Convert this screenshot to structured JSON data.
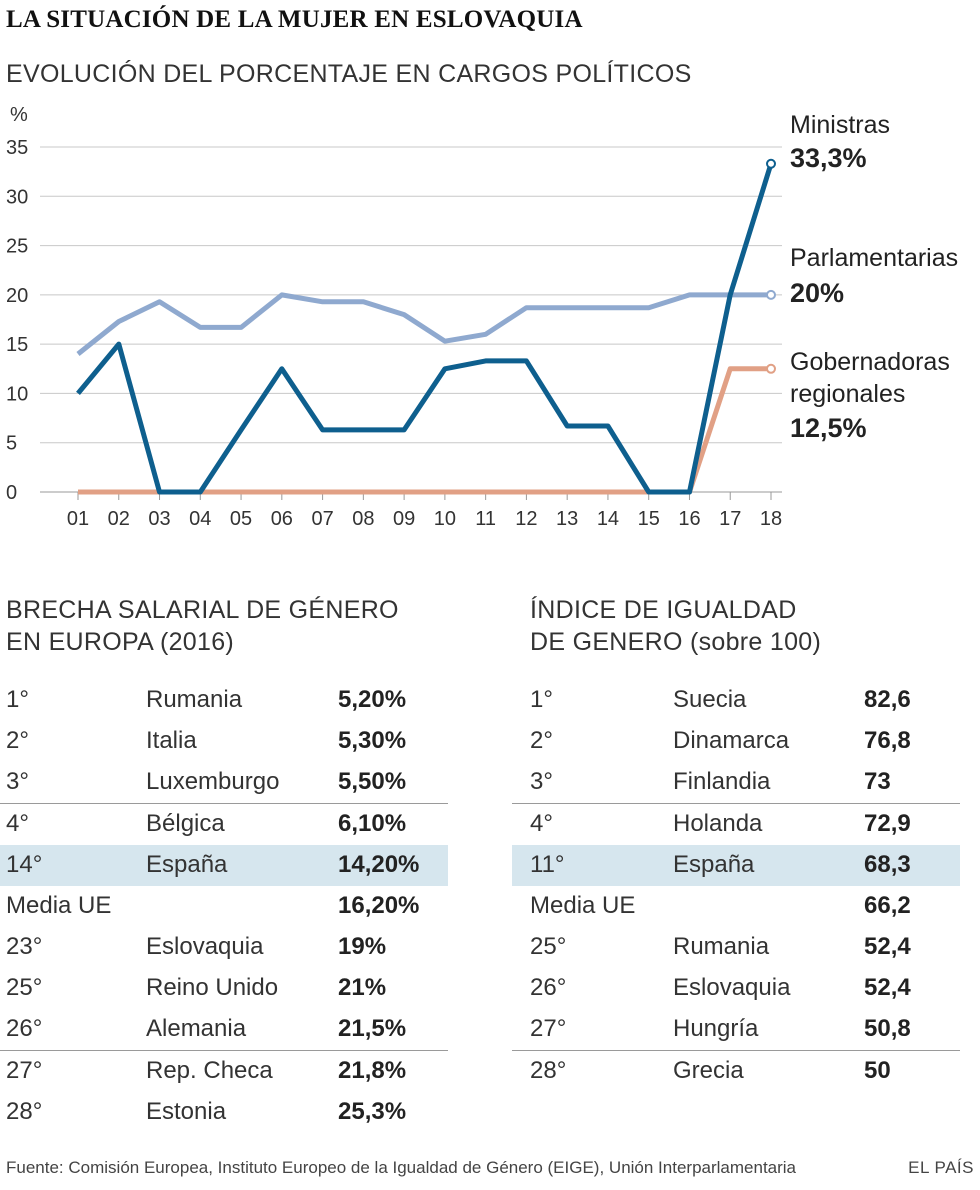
{
  "title": "LA SITUACIÓN DE LA MUJER EN ESLOVAQUIA",
  "subtitle": "EVOLUCIÓN DEL PORCENTAJE EN CARGOS POLÍTICOS",
  "chart_data": {
    "type": "line",
    "ylabel": "%",
    "ylim": [
      0,
      35
    ],
    "yticks": [
      0,
      5,
      10,
      15,
      20,
      25,
      30,
      35
    ],
    "grid": true,
    "categories": [
      "01",
      "02",
      "03",
      "04",
      "05",
      "06",
      "07",
      "08",
      "09",
      "10",
      "11",
      "12",
      "13",
      "14",
      "15",
      "16",
      "17",
      "18"
    ],
    "series": [
      {
        "name": "Parlamentarias",
        "end_label": "20%",
        "color": "#8fa9cf",
        "values": [
          14,
          17.3,
          19.3,
          16.7,
          16.7,
          20,
          19.3,
          19.3,
          18,
          15.3,
          16,
          18.7,
          18.7,
          18.7,
          18.7,
          20,
          20,
          20
        ]
      },
      {
        "name": "Gobernadoras regionales",
        "name_lines": [
          "Gobernadoras",
          "regionales"
        ],
        "end_label": "12,5%",
        "color": "#e1a085",
        "values": [
          0,
          0,
          0,
          0,
          0,
          0,
          0,
          0,
          0,
          0,
          0,
          0,
          0,
          0,
          0,
          0,
          12.5,
          12.5
        ]
      },
      {
        "name": "Ministras",
        "end_label": "33,3%",
        "color": "#0e5f8e",
        "values": [
          10,
          15,
          0,
          0,
          6.3,
          12.5,
          6.3,
          6.3,
          6.3,
          12.5,
          13.3,
          13.3,
          6.7,
          6.7,
          0,
          0,
          20,
          33.3
        ]
      }
    ]
  },
  "wage_gap": {
    "header": "BRECHA SALARIAL DE GÉNERO\nEN EUROPA (2016)",
    "rows": [
      {
        "rank": "1°",
        "country": "Rumania",
        "value": "5,20%"
      },
      {
        "rank": "2°",
        "country": "Italia",
        "value": "5,30%"
      },
      {
        "rank": "3°",
        "country": "Luxemburgo",
        "value": "5,50%"
      },
      {
        "rank": "4°",
        "country": "Bélgica",
        "value": "6,10%"
      },
      {
        "rank": "14°",
        "country": "España",
        "value": "14,20%"
      },
      {
        "rank": "Media UE",
        "country": "",
        "value": "16,20%"
      },
      {
        "rank": "23°",
        "country": "Eslovaquia",
        "value": "19%"
      },
      {
        "rank": "25°",
        "country": "Reino Unido",
        "value": "21%"
      },
      {
        "rank": "26°",
        "country": "Alemania",
        "value": "21,5%"
      },
      {
        "rank": "27°",
        "country": "Rep. Checa",
        "value": "21,8%"
      },
      {
        "rank": "28°",
        "country": "Estonia",
        "value": "25,3%"
      }
    ]
  },
  "equality_index": {
    "header": "ÍNDICE DE IGUALDAD\nDE GENERO (sobre 100)",
    "rows": [
      {
        "rank": "1°",
        "country": "Suecia",
        "value": "82,6"
      },
      {
        "rank": "2°",
        "country": "Dinamarca",
        "value": "76,8"
      },
      {
        "rank": "3°",
        "country": "Finlandia",
        "value": "73"
      },
      {
        "rank": "4°",
        "country": "Holanda",
        "value": "72,9"
      },
      {
        "rank": "11°",
        "country": "España",
        "value": "68,3"
      },
      {
        "rank": "Media UE",
        "country": "",
        "value": "66,2"
      },
      {
        "rank": "25°",
        "country": "Rumania",
        "value": "52,4"
      },
      {
        "rank": "26°",
        "country": "Eslovaquia",
        "value": "52,4"
      },
      {
        "rank": "27°",
        "country": "Hungría",
        "value": "50,8"
      },
      {
        "rank": "28°",
        "country": "Grecia",
        "value": "50"
      }
    ]
  },
  "source": "Fuente: Comisión Europea, Instituto Europeo de la Igualdad de Género (EIGE), Unión Interparlamentaria",
  "brand": "EL PAÍS"
}
